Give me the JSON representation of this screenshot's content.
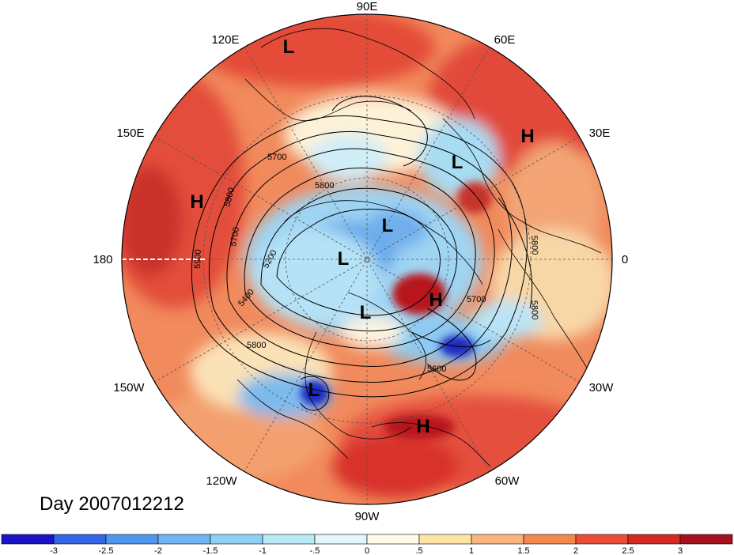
{
  "map": {
    "projection": "north-polar-stereographic",
    "longitude_labels": [
      {
        "label": "90E"
      },
      {
        "label": "60E"
      },
      {
        "label": "30E"
      },
      {
        "label": "0"
      },
      {
        "label": "30W"
      },
      {
        "label": "60W"
      },
      {
        "label": "90W"
      },
      {
        "label": "120W"
      },
      {
        "label": "150W"
      },
      {
        "label": "180"
      },
      {
        "label": "150E"
      },
      {
        "label": "120E"
      }
    ],
    "pressure_centers": [
      {
        "type": "L",
        "region": "north-siberia"
      },
      {
        "type": "H",
        "region": "western-russia"
      },
      {
        "type": "L",
        "region": "scandinavia"
      },
      {
        "type": "H",
        "region": "north-pacific"
      },
      {
        "type": "L",
        "region": "arctic-ocean"
      },
      {
        "type": "L",
        "region": "arctic-canada"
      },
      {
        "type": "H",
        "region": "greenland"
      },
      {
        "type": "L",
        "region": "hudson-bay"
      },
      {
        "type": "L",
        "region": "southwest-us"
      },
      {
        "type": "H",
        "region": "caribbean"
      }
    ],
    "contour_labels": [
      "5700",
      "5800",
      "5900",
      "5800",
      "5700",
      "5200",
      "5400",
      "5800",
      "5600",
      "5700",
      "5800",
      "5800"
    ]
  },
  "date_label": "Day 2007012212",
  "colorbar": {
    "ticks": [
      "-3",
      "-2.5",
      "-2",
      "-1.5",
      "-1",
      "-.5",
      "0",
      ".5",
      "1",
      "1.5",
      "2",
      "2.5",
      "3"
    ],
    "colors": [
      "#1a14c8",
      "#3466e6",
      "#4f97ee",
      "#6fb4f4",
      "#8ed0f6",
      "#b8eaf8",
      "#e2f6fb",
      "#fffbe6",
      "#fde6a4",
      "#f8b57c",
      "#f4874f",
      "#ec4d36",
      "#d42a25",
      "#a5111f"
    ]
  }
}
